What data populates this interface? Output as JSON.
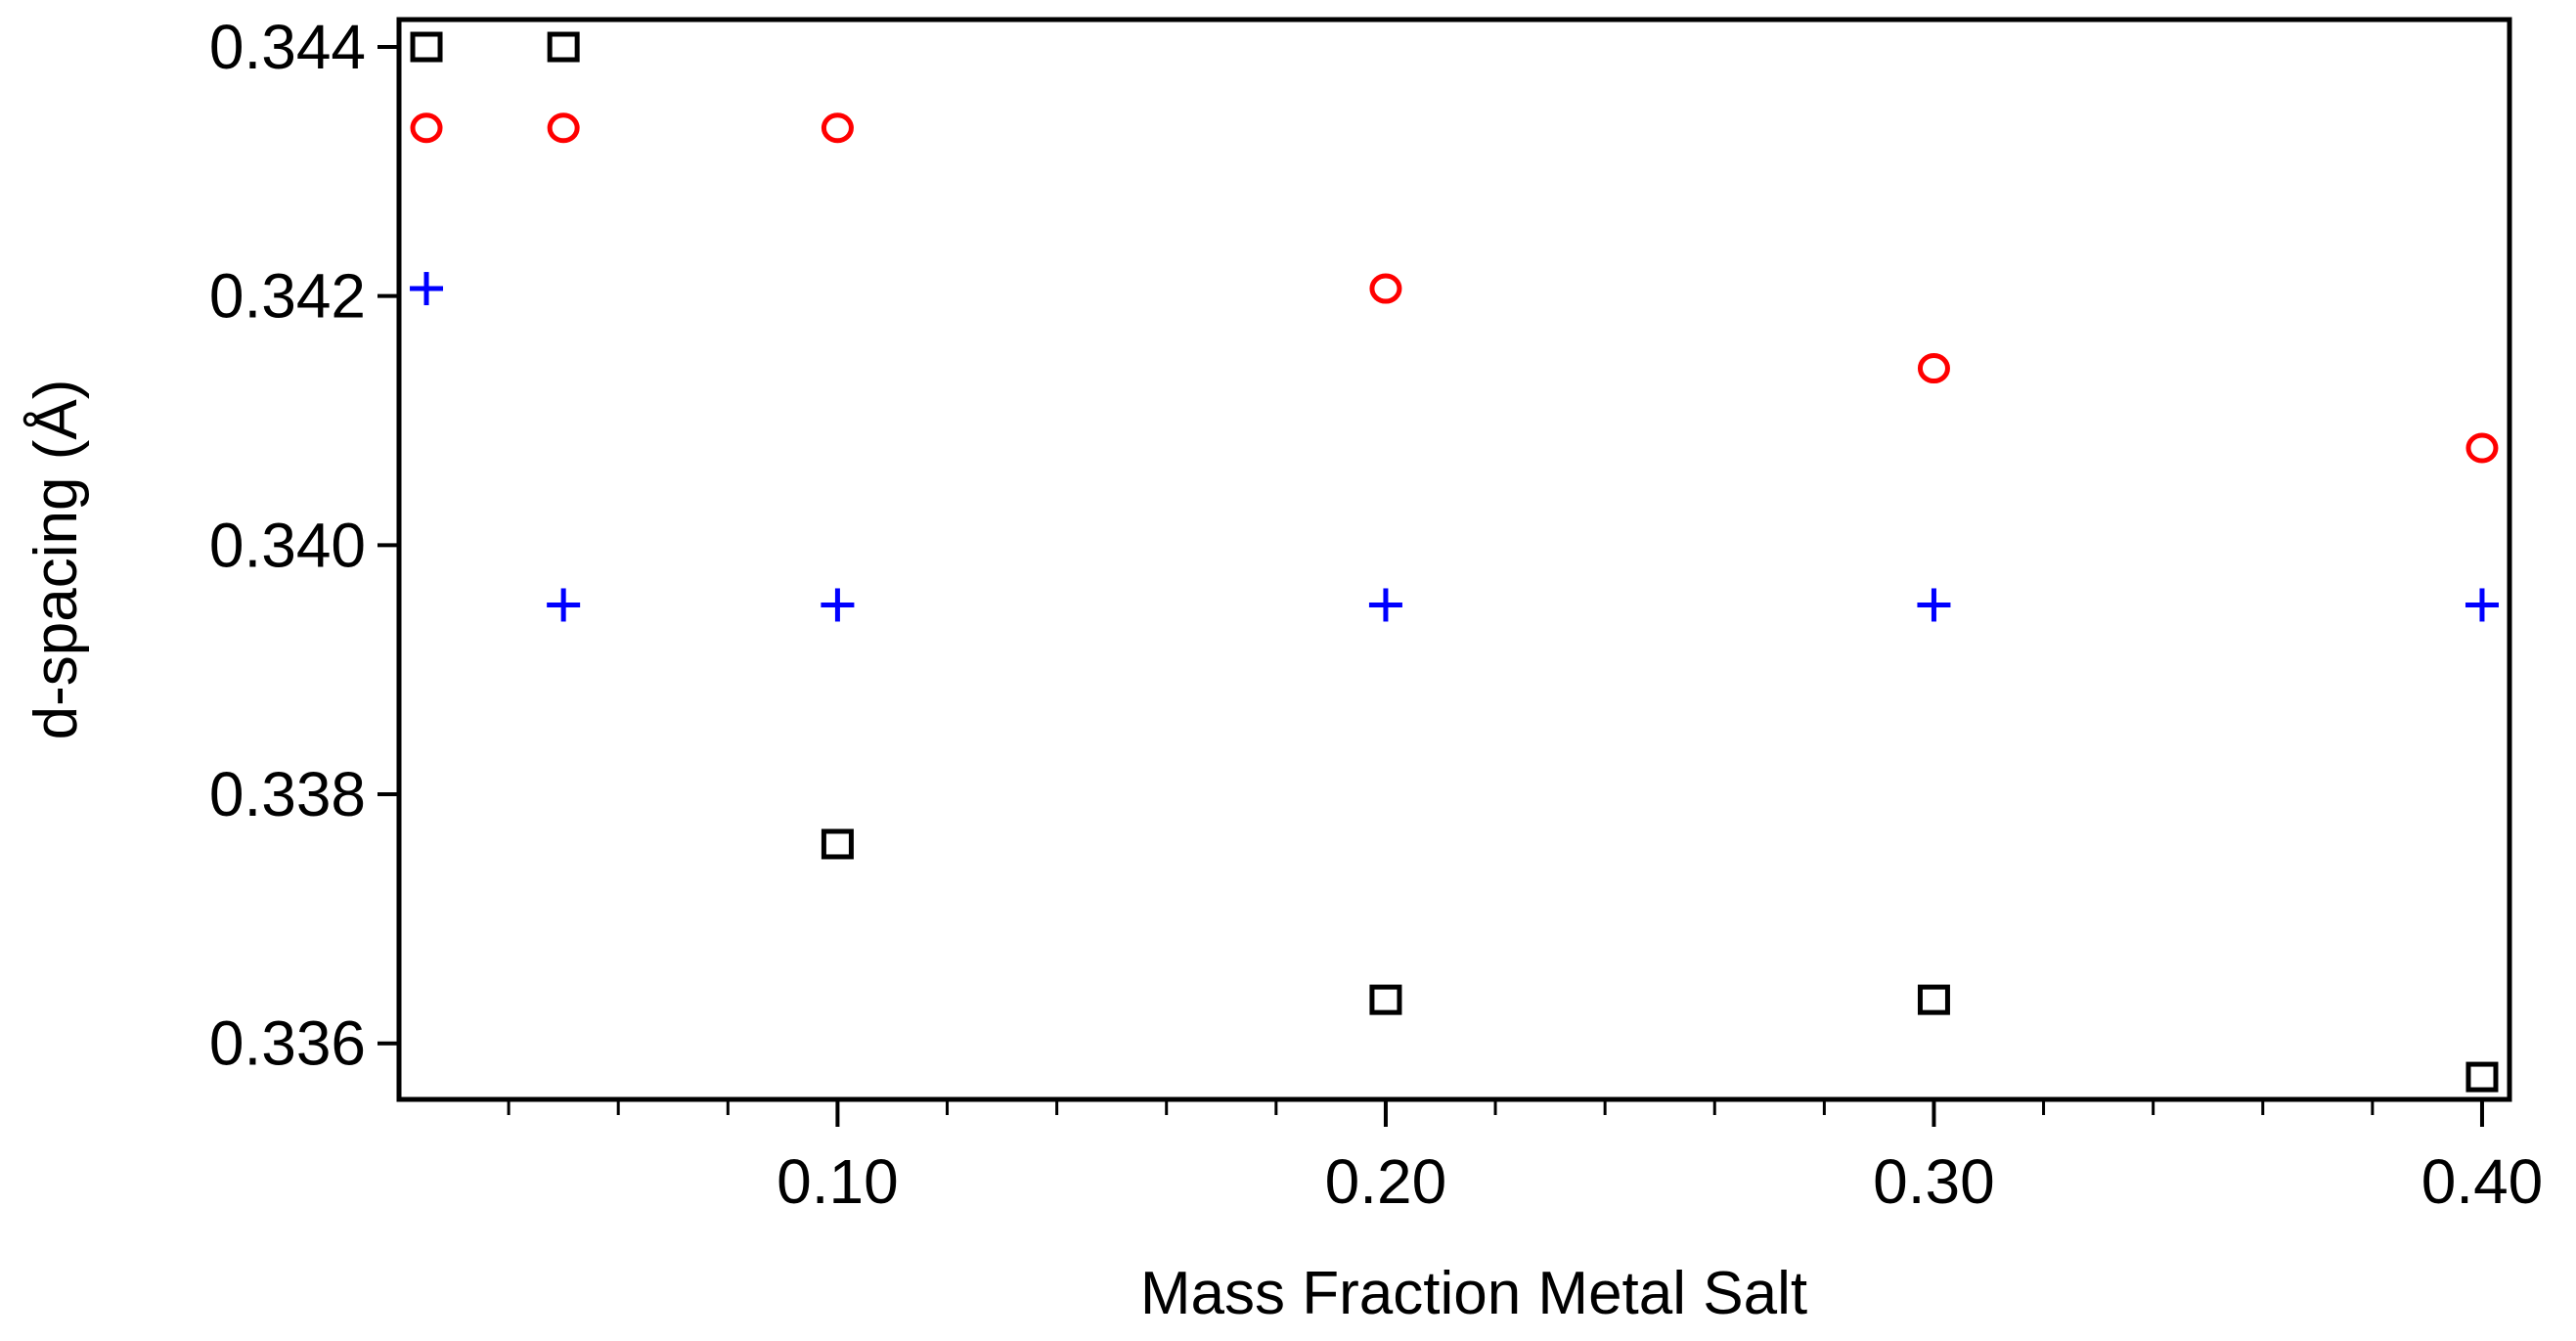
{
  "chart_data": {
    "type": "scatter",
    "xlabel": "Mass Fraction Metal Salt",
    "ylabel": "d-spacing (Å)",
    "xlim": [
      0.02,
      0.405
    ],
    "ylim": [
      0.33555,
      0.34422
    ],
    "x_ticks": [
      {
        "value": 0.1,
        "label": "0.10"
      },
      {
        "value": 0.2,
        "label": "0.20"
      },
      {
        "value": 0.3,
        "label": "0.30"
      },
      {
        "value": 0.4,
        "label": "0.40"
      }
    ],
    "x_minor_tick_step": 0.02,
    "y_ticks": [
      {
        "value": 0.336,
        "label": "0.336"
      },
      {
        "value": 0.338,
        "label": "0.338"
      },
      {
        "value": 0.34,
        "label": "0.340"
      },
      {
        "value": 0.342,
        "label": "0.342"
      },
      {
        "value": 0.344,
        "label": "0.344"
      }
    ],
    "grid": false,
    "series": [
      {
        "marker": "square",
        "color": "#000000",
        "x": [
          0.025,
          0.05,
          0.1,
          0.2,
          0.3,
          0.4
        ],
        "y": [
          0.344,
          0.344,
          0.3376,
          0.33635,
          0.33635,
          0.33573
        ]
      },
      {
        "marker": "circle",
        "color": "#ff0000",
        "x": [
          0.025,
          0.05,
          0.1,
          0.2,
          0.3,
          0.4
        ],
        "y": [
          0.34335,
          0.34335,
          0.34335,
          0.34206,
          0.34142,
          0.34078
        ]
      },
      {
        "marker": "plus",
        "color": "#0000ff",
        "x": [
          0.025,
          0.05,
          0.1,
          0.2,
          0.3,
          0.4
        ],
        "y": [
          0.34206,
          0.33952,
          0.33952,
          0.33952,
          0.33952,
          0.33952
        ]
      }
    ]
  }
}
